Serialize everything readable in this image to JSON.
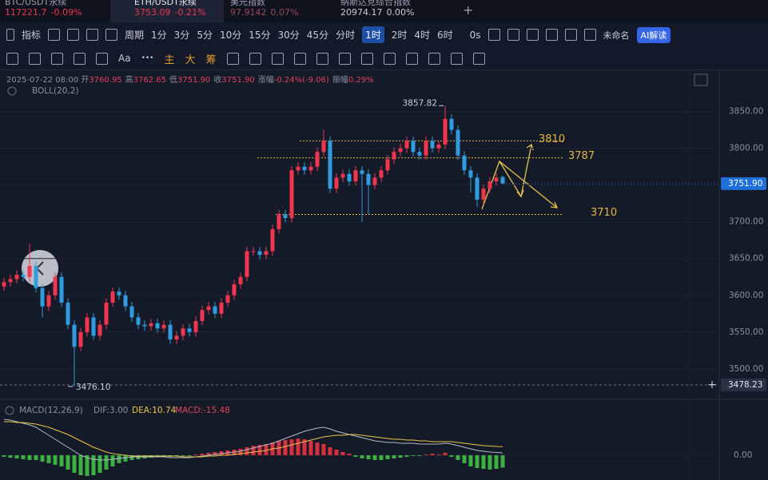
{
  "tabs": [
    {
      "name": "BTC/USDT永续",
      "price": "117221.7",
      "change": "-0.09%",
      "color": "#f0364f"
    },
    {
      "name": "ETH/USDT永续",
      "price": "3753.09",
      "change": "-0.21%",
      "color": "#f0364f",
      "active": true
    },
    {
      "name": "美元指数",
      "price": "97.9142",
      "change": "0.07%",
      "color": "#9a4a57"
    },
    {
      "name": "纳斯达克综合指数",
      "price": "20974.17",
      "change": "0.00%",
      "color": "#c8ccd6"
    }
  ],
  "add_tab": "+",
  "toolbar": {
    "indicators": "指标",
    "period": "周期",
    "intervals": [
      "1分",
      "3分",
      "5分",
      "10分",
      "15分",
      "30分",
      "45分",
      "分时",
      "1时",
      "2时",
      "4时",
      "6时"
    ],
    "active_index": 8,
    "countdown": "0s",
    "layout_name": "未命名",
    "ai": "AI解读"
  },
  "drawing_tools": {
    "text": "Aa",
    "more": "•••",
    "overlays": [
      "主",
      "大",
      "筹"
    ]
  },
  "info": {
    "time": "2025-07-22 08:00",
    "items": [
      {
        "k": "开",
        "v": "3760.95"
      },
      {
        "k": "高",
        "v": "3762.65"
      },
      {
        "k": "低",
        "v": "3751.90"
      },
      {
        "k": "收",
        "v": "3751.90"
      },
      {
        "k": "涨幅",
        "v": "-0.24%(-9.06)"
      },
      {
        "k": "振幅",
        "v": "0.29%"
      }
    ]
  },
  "chart_data": {
    "type": "candlestick",
    "open": [
      3612,
      3618,
      3622,
      3628,
      3625,
      3640,
      3610,
      3585,
      3600,
      3625,
      3590,
      3560,
      3530,
      3550,
      3570,
      3545,
      3560,
      3590,
      3605,
      3600,
      3585,
      3570,
      3560,
      3558,
      3562,
      3555,
      3560,
      3540,
      3545,
      3555,
      3550,
      3565,
      3580,
      3585,
      3575,
      3590,
      3600,
      3615,
      3625,
      3660,
      3660,
      3655,
      3660,
      3690,
      3710,
      3705,
      3770,
      3775,
      3770,
      3775,
      3795,
      3810,
      3745,
      3760,
      3765,
      3755,
      3770,
      3765,
      3750,
      3760,
      3770,
      3785,
      3795,
      3800,
      3810,
      3795,
      3790,
      3810,
      3800,
      3805,
      3840,
      3825,
      3790,
      3770,
      3760,
      3730,
      3745,
      3755,
      3760.95
    ],
    "high": [
      3624,
      3628,
      3634,
      3634,
      3670,
      3646,
      3616,
      3606,
      3631,
      3631,
      3596,
      3566,
      3556,
      3576,
      3576,
      3566,
      3596,
      3611,
      3611,
      3606,
      3591,
      3576,
      3566,
      3568,
      3568,
      3566,
      3566,
      3551,
      3561,
      3561,
      3571,
      3586,
      3591,
      3591,
      3596,
      3606,
      3621,
      3631,
      3666,
      3666,
      3666,
      3666,
      3696,
      3716,
      3716,
      3776,
      3781,
      3781,
      3781,
      3801,
      3825,
      3816,
      3766,
      3771,
      3771,
      3776,
      3776,
      3771,
      3766,
      3776,
      3791,
      3801,
      3806,
      3816,
      3816,
      3801,
      3816,
      3816,
      3811,
      3857.82,
      3846,
      3831,
      3796,
      3776,
      3766,
      3751,
      3761,
      3766,
      3762.65
    ],
    "low": [
      3606,
      3612,
      3616,
      3619,
      3619,
      3604,
      3570,
      3579,
      3594,
      3584,
      3554,
      3476.1,
      3524,
      3544,
      3539,
      3539,
      3554,
      3584,
      3594,
      3579,
      3564,
      3554,
      3552,
      3552,
      3549,
      3549,
      3534,
      3534,
      3539,
      3544,
      3544,
      3559,
      3574,
      3569,
      3569,
      3584,
      3594,
      3609,
      3619,
      3654,
      3649,
      3649,
      3654,
      3684,
      3699,
      3699,
      3764,
      3764,
      3764,
      3769,
      3789,
      3739,
      3739,
      3754,
      3749,
      3749,
      3700,
      3710,
      3744,
      3754,
      3764,
      3779,
      3789,
      3794,
      3789,
      3784,
      3784,
      3794,
      3794,
      3799,
      3819,
      3784,
      3764,
      3740,
      3720,
      3724,
      3739,
      3749,
      3751.9
    ],
    "close": [
      3618,
      3622,
      3628,
      3625,
      3640,
      3610,
      3585,
      3600,
      3625,
      3590,
      3560,
      3530,
      3550,
      3570,
      3545,
      3560,
      3590,
      3605,
      3600,
      3585,
      3570,
      3560,
      3558,
      3562,
      3555,
      3560,
      3540,
      3545,
      3555,
      3550,
      3565,
      3580,
      3585,
      3575,
      3590,
      3600,
      3615,
      3625,
      3660,
      3660,
      3655,
      3660,
      3690,
      3710,
      3705,
      3770,
      3775,
      3770,
      3775,
      3795,
      3810,
      3745,
      3760,
      3765,
      3755,
      3770,
      3765,
      3750,
      3760,
      3770,
      3785,
      3795,
      3800,
      3810,
      3795,
      3790,
      3810,
      3800,
      3805,
      3840,
      3825,
      3790,
      3770,
      3760,
      3730,
      3745,
      3755,
      3760,
      3751.9
    ],
    "up_color": "#f0364f",
    "down_color": "#2f9be0",
    "ylim": [
      3464,
      3906
    ],
    "yticks": [
      {
        "value": 3850,
        "label": "3850.00"
      },
      {
        "value": 3800,
        "label": "3800.00"
      },
      {
        "value": 3750,
        "label": "3750.00"
      },
      {
        "value": 3700,
        "label": "3700.00"
      },
      {
        "value": 3650,
        "label": "3650.00"
      },
      {
        "value": 3600,
        "label": "3600.00"
      },
      {
        "value": 3550,
        "label": "3550.00"
      },
      {
        "value": 3500,
        "label": "3500.00"
      }
    ],
    "grid": true,
    "extremes": [
      {
        "index": 69,
        "value": 3857.82,
        "label": "3857.82"
      },
      {
        "index": 11,
        "value": 3476.1,
        "label": "3476.10"
      }
    ],
    "levels": [
      3810,
      3787,
      3710
    ],
    "level_color": "#e2b53e",
    "last_price": {
      "value": 3751.9,
      "label": "3751.90"
    },
    "crosshair": {
      "value": 3478.23,
      "label": "3478.23"
    },
    "indicator": "BOLL(20,2)",
    "macd": {
      "title": "MACD(12,26,9)",
      "dif_label": "DIF:3.00",
      "dea_label": "DEA:10.74",
      "macd_label": "MACD:-15.48",
      "dif": [
        45,
        44,
        42,
        40,
        38,
        35,
        30,
        25,
        20,
        15,
        10,
        5,
        0,
        -3,
        -5,
        -6,
        -6,
        -5,
        -4,
        -3,
        -2,
        -2,
        -2,
        -2,
        -2,
        -2,
        -3,
        -3,
        -3,
        -3,
        -2,
        -1,
        0,
        1,
        2,
        3,
        4,
        5,
        7,
        9,
        11,
        13,
        15,
        18,
        21,
        24,
        27,
        30,
        32,
        34,
        35,
        33,
        30,
        28,
        26,
        24,
        22,
        20,
        18,
        17,
        16,
        16,
        15,
        15,
        15,
        14,
        14,
        14,
        14,
        15,
        14,
        12,
        10,
        8,
        6,
        5,
        4,
        3.5,
        3
      ],
      "dea": [
        42,
        42,
        41,
        41,
        40,
        39,
        37,
        35,
        32,
        29,
        26,
        22,
        18,
        14,
        10,
        7,
        4,
        2,
        1,
        0,
        -1,
        -1,
        -1,
        -1,
        -1,
        -1,
        -1,
        -1,
        -2,
        -2,
        -2,
        -2,
        -1,
        -1,
        0,
        0,
        1,
        2,
        3,
        4,
        5,
        6,
        8,
        9,
        11,
        13,
        15,
        17,
        19,
        21,
        23,
        24,
        25,
        25,
        26,
        26,
        25,
        24,
        23,
        22,
        21,
        20,
        20,
        19,
        19,
        18,
        18,
        17,
        17,
        17,
        17,
        16,
        15,
        14,
        13,
        12,
        11.5,
        11,
        10.74
      ],
      "hist": [
        -2,
        -3,
        -4,
        -5,
        -6,
        -6,
        -8,
        -10,
        -12,
        -14,
        -18,
        -22,
        -25,
        -26,
        -25,
        -22,
        -18,
        -14,
        -10,
        -8,
        -6,
        -5,
        -4,
        -3,
        -2,
        -2,
        -2,
        -1,
        -1,
        -1,
        1,
        2,
        3,
        4,
        5,
        6,
        7,
        8,
        10,
        12,
        13,
        14,
        16,
        18,
        19,
        20,
        21,
        20,
        18,
        16,
        14,
        10,
        7,
        4,
        2,
        -2,
        -4,
        -5,
        -6,
        -6,
        -5,
        -4,
        -3,
        -2,
        -1,
        -1,
        1,
        2,
        1,
        3,
        -2,
        -6,
        -10,
        -14,
        -16,
        -17,
        -18,
        -17,
        -15.48
      ],
      "dif_color": "#b6bac6",
      "dea_color": "#e8c547",
      "pos_color": "#d8303f",
      "neg_color": "#3cb043",
      "ylim": [
        -31,
        65
      ],
      "yticks": [
        {
          "value": 0,
          "label": "0.00"
        }
      ]
    }
  }
}
